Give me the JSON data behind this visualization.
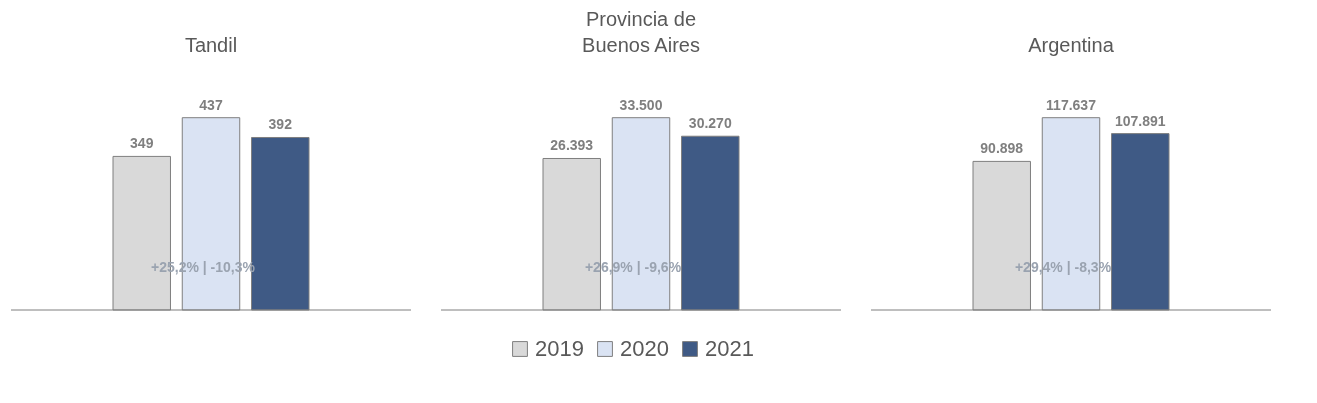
{
  "chart_data": [
    {
      "type": "bar",
      "title": "Tandil",
      "categories": [
        null
      ],
      "legend": "bottom",
      "annotations": [
        "+25,2% | -10,3%"
      ],
      "series": [
        {
          "name": "2019",
          "color": "#d9d9d9",
          "values": [
            349
          ],
          "value_labels": [
            "349"
          ]
        },
        {
          "name": "2020",
          "color": "#dae3f3",
          "values": [
            437
          ],
          "value_labels": [
            "437"
          ]
        },
        {
          "name": "2021",
          "color": "#3f5a85",
          "values": [
            392
          ],
          "value_labels": [
            "392"
          ]
        }
      ]
    },
    {
      "type": "bar",
      "title": "Provincia de Buenos Aires",
      "categories": [
        null
      ],
      "legend": "bottom",
      "annotations": [
        "+26,9% | -9,6%"
      ],
      "series": [
        {
          "name": "2019",
          "color": "#d9d9d9",
          "values": [
            26393
          ],
          "value_labels": [
            "26.393"
          ]
        },
        {
          "name": "2020",
          "color": "#dae3f3",
          "values": [
            33500
          ],
          "value_labels": [
            "33.500"
          ]
        },
        {
          "name": "2021",
          "color": "#3f5a85",
          "values": [
            30270
          ],
          "value_labels": [
            "30.270"
          ]
        }
      ]
    },
    {
      "type": "bar",
      "title": "Argentina",
      "categories": [
        null
      ],
      "legend": "bottom",
      "annotations": [
        "+29,4% | -8,3%"
      ],
      "series": [
        {
          "name": "2019",
          "color": "#d9d9d9",
          "values": [
            90898
          ],
          "value_labels": [
            "90.898"
          ]
        },
        {
          "name": "2020",
          "color": "#dae3f3",
          "values": [
            117637
          ],
          "value_labels": [
            "117.637"
          ]
        },
        {
          "name": "2021",
          "color": "#3f5a85",
          "values": [
            107891
          ],
          "value_labels": [
            "107.891"
          ]
        }
      ]
    }
  ]
}
